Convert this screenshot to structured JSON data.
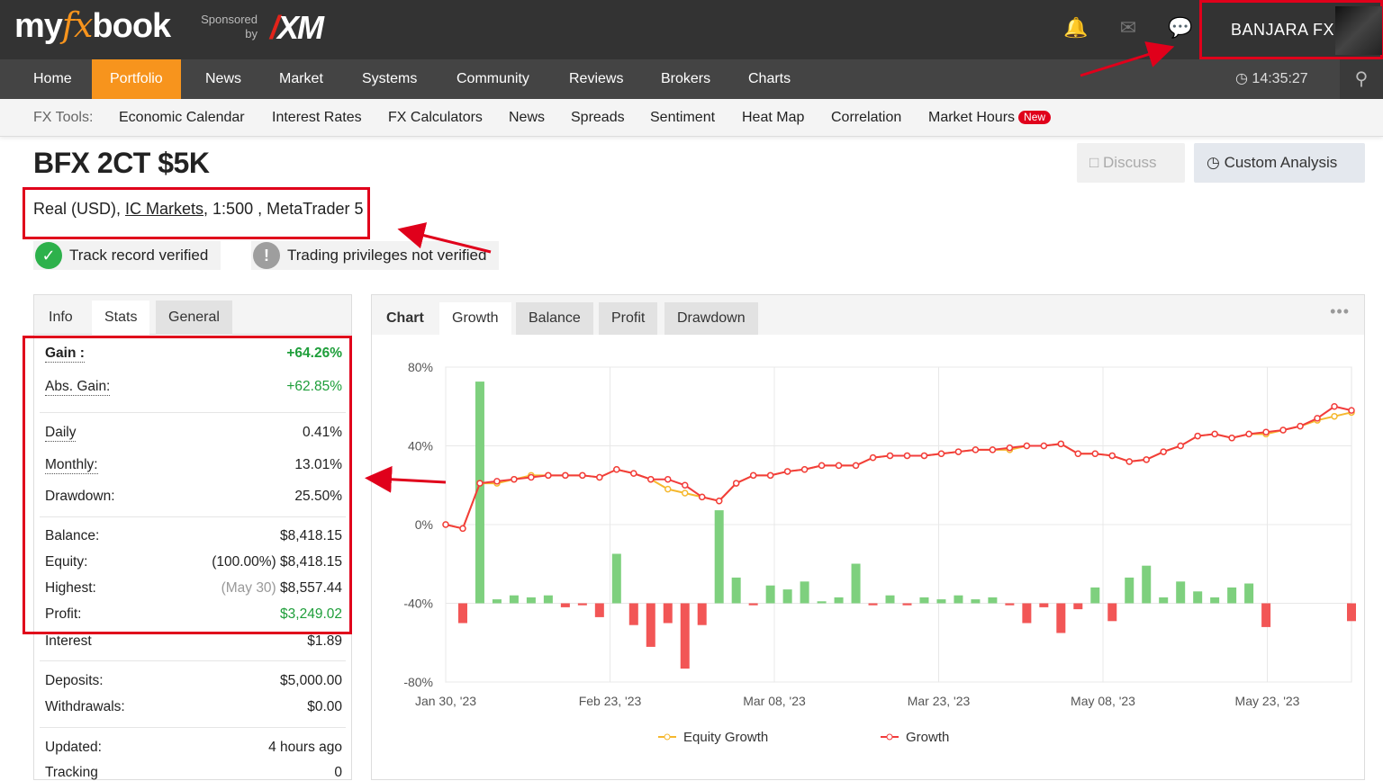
{
  "header": {
    "logo_left": "my",
    "logo_fx": "fx",
    "logo_right": "book",
    "sponsored_line1": "Sponsored",
    "sponsored_line2": "by",
    "sponsor": "XM",
    "user_name": "BANJARA FX"
  },
  "nav": {
    "items": [
      "Home",
      "Portfolio",
      "News",
      "Market",
      "Systems",
      "Community",
      "Reviews",
      "Brokers",
      "Charts"
    ],
    "active": "Portfolio",
    "time": "14:35:27"
  },
  "tools": {
    "label": "FX Tools:",
    "items": [
      "Economic Calendar",
      "Interest Rates",
      "FX Calculators",
      "News",
      "Spreads",
      "Sentiment",
      "Heat Map",
      "Correlation",
      "Market Hours"
    ],
    "new_badge": "New"
  },
  "account": {
    "title": "BFX 2CT $5K",
    "type": "Real (USD),",
    "broker": "IC Markets",
    "details": ", 1:500 , MetaTrader 5",
    "track_record": "Track record verified",
    "trading_privileges": "Trading privileges not verified"
  },
  "buttons": {
    "discuss": "Discuss",
    "custom_analysis": "Custom Analysis"
  },
  "info_panel": {
    "tabs": [
      "Info",
      "Stats",
      "General"
    ],
    "rows": [
      {
        "label": "Gain :",
        "value": "+64.26%"
      },
      {
        "label": "Abs. Gain:",
        "value": "+62.85%"
      },
      {
        "label": "Daily",
        "value": "0.41%"
      },
      {
        "label": "Monthly:",
        "value": "13.01%"
      },
      {
        "label": "Drawdown:",
        "value": "25.50%"
      },
      {
        "label": "Balance:",
        "value": "$8,418.15"
      },
      {
        "label": "Equity:",
        "value_prefix": "(100.00%)",
        "value": "$8,418.15"
      },
      {
        "label": "Highest:",
        "value_prefix": "(May 30)",
        "value": "$8,557.44"
      },
      {
        "label": "Profit:",
        "value": "$3,249.02"
      },
      {
        "label": "Interest",
        "value": "$1.89"
      },
      {
        "label": "Deposits:",
        "value": "$5,000.00"
      },
      {
        "label": "Withdrawals:",
        "value": "$0.00"
      },
      {
        "label": "Updated:",
        "value": "4 hours ago"
      },
      {
        "label": "Tracking",
        "value": "0"
      }
    ]
  },
  "chart_panel": {
    "label": "Chart",
    "tabs": [
      "Growth",
      "Balance",
      "Profit",
      "Drawdown"
    ],
    "menu": "•••"
  },
  "colors": {
    "accent": "#f7941d",
    "highlight": "#e0001b",
    "positive": "#1e9e3a",
    "bar_positive": "#7ed07e",
    "bar_negative": "#f25656",
    "growth_line": "#f23c3c",
    "equity_line": "#f5b82e"
  },
  "chart_data": {
    "type": "line",
    "ylim": [
      -80,
      80
    ],
    "yticks": [
      "80%",
      "40%",
      "0%",
      "-40%",
      "-80%"
    ],
    "ytick_values": [
      80,
      40,
      0,
      -40,
      -80
    ],
    "xticks": [
      "Jan 30, '23",
      "Feb 23, '23",
      "Mar 08, '23",
      "Mar 23, '23",
      "May 08, '23",
      "May 23, '23"
    ],
    "legend": [
      "Equity Growth",
      "Growth"
    ],
    "legend_position": "bottom",
    "grid": true,
    "series": [
      {
        "name": "Growth",
        "values": [
          0,
          -2,
          21,
          22,
          23,
          24,
          25,
          25,
          25,
          24,
          28,
          26,
          23,
          23,
          20,
          14,
          12,
          21,
          25,
          25,
          27,
          28,
          30,
          30,
          30,
          34,
          35,
          35,
          35,
          36,
          37,
          38,
          38,
          39,
          40,
          40,
          41,
          36,
          36,
          35,
          32,
          33,
          37,
          40,
          45,
          46,
          44,
          46,
          47,
          48,
          50,
          54,
          60,
          58
        ]
      },
      {
        "name": "Equity Growth",
        "values": [
          0,
          -2,
          21,
          21,
          23,
          25,
          25,
          25,
          25,
          24,
          28,
          26,
          23,
          18,
          16,
          14,
          12,
          21,
          25,
          25,
          27,
          28,
          30,
          30,
          30,
          34,
          35,
          35,
          35,
          36,
          37,
          38,
          38,
          38,
          40,
          40,
          41,
          36,
          36,
          35,
          32,
          33,
          37,
          40,
          45,
          46,
          44,
          46,
          46,
          48,
          50,
          53,
          55,
          57
        ]
      },
      {
        "name": "Profit bars",
        "values": [
          0,
          -10,
          112,
          2,
          4,
          3,
          4,
          -2,
          -1,
          -7,
          25,
          -11,
          -22,
          -10,
          -33,
          -11,
          47,
          13,
          -1,
          9,
          7,
          11,
          1,
          3,
          20,
          -1,
          4,
          -1,
          3,
          2,
          4,
          2,
          3,
          -1,
          -10,
          -2,
          -15,
          -3,
          8,
          -9,
          13,
          19,
          3,
          11,
          6,
          3,
          8,
          10,
          -12,
          0,
          0,
          0,
          0,
          -9
        ]
      }
    ]
  }
}
